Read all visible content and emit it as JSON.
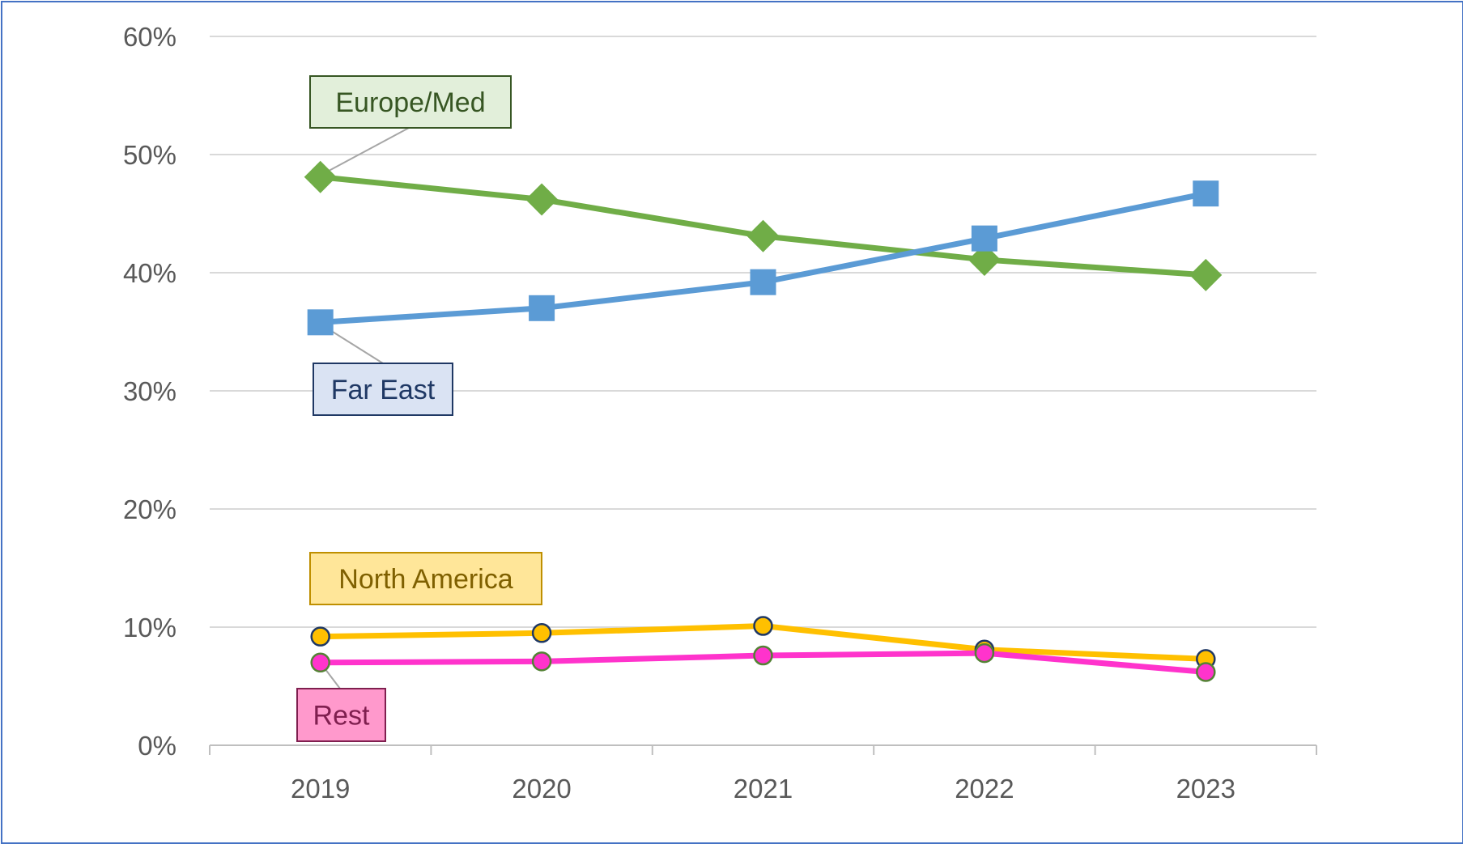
{
  "chart_data": {
    "type": "line",
    "title": "",
    "xlabel": "",
    "ylabel": "",
    "x": [
      "2019",
      "2020",
      "2021",
      "2022",
      "2023"
    ],
    "ylim": [
      0,
      0.6
    ],
    "yticks": [
      "0%",
      "10%",
      "20%",
      "30%",
      "40%",
      "50%",
      "60%"
    ],
    "grid": true,
    "legend": "none (series labeled with callout boxes)",
    "series": [
      {
        "name": "Europe/Med",
        "values": [
          0.481,
          0.462,
          0.431,
          0.411,
          0.398
        ],
        "color": "#70ad47",
        "marker": "diamond",
        "label_fill": "#e2efda",
        "label_border": "#375623",
        "label_text_color": "#375623"
      },
      {
        "name": "Far East",
        "values": [
          0.358,
          0.37,
          0.392,
          0.429,
          0.467
        ],
        "color": "#5b9bd5",
        "marker": "square",
        "label_fill": "#dae3f3",
        "label_border": "#1f3864",
        "label_text_color": "#1f3864"
      },
      {
        "name": "North America",
        "values": [
          0.092,
          0.095,
          0.101,
          0.081,
          0.073
        ],
        "color": "#ffc000",
        "marker": "circle",
        "marker_edge": "#1f3864",
        "label_fill": "#ffe699",
        "label_border": "#bf8f00",
        "label_text_color": "#7f6000"
      },
      {
        "name": "Rest",
        "values": [
          0.07,
          0.071,
          0.076,
          0.078,
          0.062
        ],
        "color": "#ff33cc",
        "marker": "circle",
        "marker_edge": "#548235",
        "label_fill": "#ff99cc",
        "label_border": "#7f1f4f",
        "label_text_color": "#7f1f4f"
      }
    ]
  }
}
